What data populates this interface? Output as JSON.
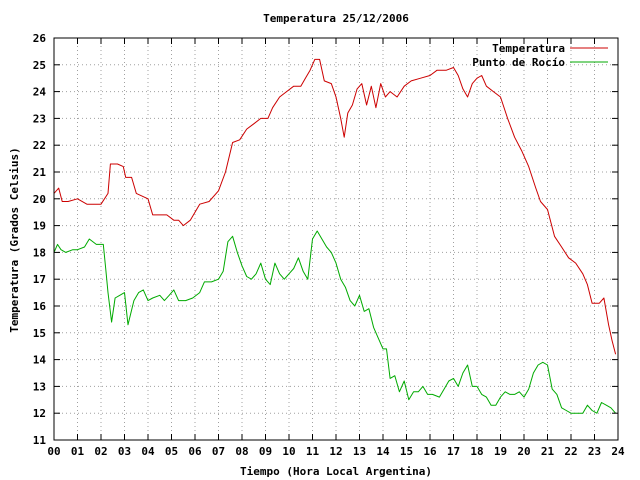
{
  "chart_data": {
    "type": "line",
    "title": "Temperatura 25/12/2006",
    "xlabel": "Tiempo (Hora Local Argentina)",
    "ylabel": "Temperatura (Grados Celsius)",
    "xlim": [
      0,
      24
    ],
    "ylim": [
      11,
      26
    ],
    "x_ticks": [
      "00",
      "01",
      "02",
      "03",
      "04",
      "05",
      "06",
      "07",
      "08",
      "09",
      "10",
      "11",
      "12",
      "13",
      "14",
      "15",
      "16",
      "17",
      "18",
      "19",
      "20",
      "21",
      "22",
      "23",
      "24"
    ],
    "y_ticks": [
      "11",
      "12",
      "13",
      "14",
      "15",
      "16",
      "17",
      "18",
      "19",
      "20",
      "21",
      "22",
      "23",
      "24",
      "25",
      "26"
    ],
    "grid": true,
    "legend_position": "top-right",
    "series": [
      {
        "name": "Temperatura",
        "color": "#cc0000",
        "points": [
          [
            0.0,
            20.2
          ],
          [
            0.2,
            20.4
          ],
          [
            0.35,
            19.9
          ],
          [
            0.6,
            19.9
          ],
          [
            1.0,
            20.0
          ],
          [
            1.4,
            19.8
          ],
          [
            2.0,
            19.8
          ],
          [
            2.3,
            20.2
          ],
          [
            2.4,
            21.3
          ],
          [
            2.7,
            21.3
          ],
          [
            2.95,
            21.2
          ],
          [
            3.05,
            20.8
          ],
          [
            3.3,
            20.8
          ],
          [
            3.5,
            20.2
          ],
          [
            4.0,
            20.0
          ],
          [
            4.2,
            19.4
          ],
          [
            4.8,
            19.4
          ],
          [
            5.1,
            19.2
          ],
          [
            5.3,
            19.2
          ],
          [
            5.5,
            19.0
          ],
          [
            5.8,
            19.2
          ],
          [
            6.2,
            19.8
          ],
          [
            6.6,
            19.9
          ],
          [
            7.0,
            20.3
          ],
          [
            7.3,
            21.0
          ],
          [
            7.6,
            22.1
          ],
          [
            7.9,
            22.2
          ],
          [
            8.2,
            22.6
          ],
          [
            8.5,
            22.8
          ],
          [
            8.8,
            23.0
          ],
          [
            9.1,
            23.0
          ],
          [
            9.3,
            23.4
          ],
          [
            9.6,
            23.8
          ],
          [
            9.9,
            24.0
          ],
          [
            10.2,
            24.2
          ],
          [
            10.5,
            24.2
          ],
          [
            10.7,
            24.5
          ],
          [
            10.9,
            24.8
          ],
          [
            11.1,
            25.2
          ],
          [
            11.3,
            25.2
          ],
          [
            11.5,
            24.4
          ],
          [
            11.8,
            24.3
          ],
          [
            12.0,
            23.8
          ],
          [
            12.2,
            23.0
          ],
          [
            12.35,
            22.3
          ],
          [
            12.5,
            23.2
          ],
          [
            12.7,
            23.5
          ],
          [
            12.9,
            24.1
          ],
          [
            13.1,
            24.3
          ],
          [
            13.3,
            23.5
          ],
          [
            13.5,
            24.2
          ],
          [
            13.7,
            23.4
          ],
          [
            13.9,
            24.3
          ],
          [
            14.1,
            23.8
          ],
          [
            14.3,
            24.0
          ],
          [
            14.6,
            23.8
          ],
          [
            14.9,
            24.2
          ],
          [
            15.2,
            24.4
          ],
          [
            15.6,
            24.5
          ],
          [
            16.0,
            24.6
          ],
          [
            16.3,
            24.8
          ],
          [
            16.7,
            24.8
          ],
          [
            17.0,
            24.9
          ],
          [
            17.2,
            24.6
          ],
          [
            17.4,
            24.1
          ],
          [
            17.6,
            23.8
          ],
          [
            17.8,
            24.3
          ],
          [
            18.0,
            24.5
          ],
          [
            18.2,
            24.6
          ],
          [
            18.4,
            24.2
          ],
          [
            18.7,
            24.0
          ],
          [
            19.0,
            23.8
          ],
          [
            19.3,
            23.0
          ],
          [
            19.6,
            22.3
          ],
          [
            19.9,
            21.8
          ],
          [
            20.2,
            21.2
          ],
          [
            20.5,
            20.4
          ],
          [
            20.7,
            19.9
          ],
          [
            21.0,
            19.6
          ],
          [
            21.3,
            18.6
          ],
          [
            21.6,
            18.2
          ],
          [
            21.9,
            17.8
          ],
          [
            22.2,
            17.6
          ],
          [
            22.5,
            17.2
          ],
          [
            22.7,
            16.8
          ],
          [
            22.9,
            16.1
          ],
          [
            23.2,
            16.1
          ],
          [
            23.4,
            16.3
          ],
          [
            23.6,
            15.3
          ],
          [
            23.75,
            14.7
          ],
          [
            23.9,
            14.2
          ]
        ]
      },
      {
        "name": "Punto de Rocío",
        "color": "#00aa00",
        "points": [
          [
            0.0,
            18.0
          ],
          [
            0.15,
            18.3
          ],
          [
            0.3,
            18.1
          ],
          [
            0.5,
            18.0
          ],
          [
            0.8,
            18.1
          ],
          [
            1.0,
            18.1
          ],
          [
            1.3,
            18.2
          ],
          [
            1.5,
            18.5
          ],
          [
            1.8,
            18.3
          ],
          [
            2.1,
            18.3
          ],
          [
            2.2,
            17.4
          ],
          [
            2.3,
            16.5
          ],
          [
            2.45,
            15.4
          ],
          [
            2.6,
            16.3
          ],
          [
            2.8,
            16.4
          ],
          [
            3.0,
            16.5
          ],
          [
            3.15,
            15.3
          ],
          [
            3.4,
            16.2
          ],
          [
            3.6,
            16.5
          ],
          [
            3.8,
            16.6
          ],
          [
            4.0,
            16.2
          ],
          [
            4.2,
            16.3
          ],
          [
            4.5,
            16.4
          ],
          [
            4.7,
            16.2
          ],
          [
            4.9,
            16.4
          ],
          [
            5.1,
            16.6
          ],
          [
            5.3,
            16.2
          ],
          [
            5.6,
            16.2
          ],
          [
            5.9,
            16.3
          ],
          [
            6.2,
            16.5
          ],
          [
            6.4,
            16.9
          ],
          [
            6.7,
            16.9
          ],
          [
            7.0,
            17.0
          ],
          [
            7.2,
            17.3
          ],
          [
            7.4,
            18.4
          ],
          [
            7.6,
            18.6
          ],
          [
            7.8,
            18.0
          ],
          [
            8.0,
            17.5
          ],
          [
            8.2,
            17.1
          ],
          [
            8.4,
            17.0
          ],
          [
            8.6,
            17.2
          ],
          [
            8.8,
            17.6
          ],
          [
            9.0,
            17.0
          ],
          [
            9.2,
            16.8
          ],
          [
            9.4,
            17.6
          ],
          [
            9.6,
            17.2
          ],
          [
            9.8,
            17.0
          ],
          [
            10.0,
            17.2
          ],
          [
            10.2,
            17.4
          ],
          [
            10.4,
            17.8
          ],
          [
            10.6,
            17.3
          ],
          [
            10.8,
            17.0
          ],
          [
            11.0,
            18.5
          ],
          [
            11.2,
            18.8
          ],
          [
            11.4,
            18.5
          ],
          [
            11.6,
            18.2
          ],
          [
            11.8,
            18.0
          ],
          [
            12.0,
            17.6
          ],
          [
            12.2,
            17.0
          ],
          [
            12.4,
            16.7
          ],
          [
            12.6,
            16.2
          ],
          [
            12.8,
            16.0
          ],
          [
            13.0,
            16.4
          ],
          [
            13.2,
            15.8
          ],
          [
            13.4,
            15.9
          ],
          [
            13.6,
            15.2
          ],
          [
            13.8,
            14.8
          ],
          [
            14.0,
            14.4
          ],
          [
            14.15,
            14.4
          ],
          [
            14.3,
            13.3
          ],
          [
            14.5,
            13.4
          ],
          [
            14.7,
            12.8
          ],
          [
            14.9,
            13.2
          ],
          [
            15.1,
            12.5
          ],
          [
            15.3,
            12.8
          ],
          [
            15.5,
            12.8
          ],
          [
            15.7,
            13.0
          ],
          [
            15.9,
            12.7
          ],
          [
            16.1,
            12.7
          ],
          [
            16.4,
            12.6
          ],
          [
            16.6,
            12.9
          ],
          [
            16.8,
            13.2
          ],
          [
            17.0,
            13.3
          ],
          [
            17.2,
            13.0
          ],
          [
            17.4,
            13.5
          ],
          [
            17.6,
            13.8
          ],
          [
            17.8,
            13.0
          ],
          [
            18.0,
            13.0
          ],
          [
            18.2,
            12.7
          ],
          [
            18.4,
            12.6
          ],
          [
            18.6,
            12.3
          ],
          [
            18.8,
            12.3
          ],
          [
            19.0,
            12.6
          ],
          [
            19.2,
            12.8
          ],
          [
            19.4,
            12.7
          ],
          [
            19.6,
            12.7
          ],
          [
            19.8,
            12.8
          ],
          [
            20.0,
            12.6
          ],
          [
            20.2,
            12.9
          ],
          [
            20.4,
            13.5
          ],
          [
            20.6,
            13.8
          ],
          [
            20.8,
            13.9
          ],
          [
            21.0,
            13.8
          ],
          [
            21.2,
            12.9
          ],
          [
            21.4,
            12.7
          ],
          [
            21.6,
            12.2
          ],
          [
            21.8,
            12.1
          ],
          [
            22.0,
            12.0
          ],
          [
            22.3,
            12.0
          ],
          [
            22.5,
            12.0
          ],
          [
            22.7,
            12.3
          ],
          [
            22.9,
            12.1
          ],
          [
            23.1,
            12.0
          ],
          [
            23.3,
            12.4
          ],
          [
            23.5,
            12.3
          ],
          [
            23.7,
            12.2
          ],
          [
            23.9,
            12.0
          ]
        ]
      }
    ]
  }
}
